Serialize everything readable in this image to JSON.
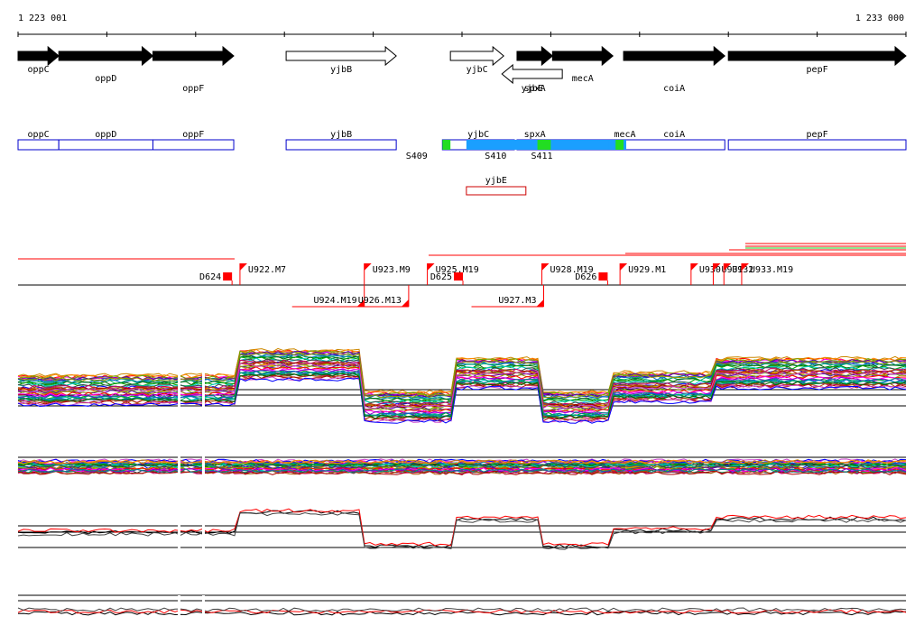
{
  "ruler": {
    "start_label": "1 223 001",
    "end_label": "1 233 000"
  },
  "genome": {
    "start": 1223001,
    "end": 1233000
  },
  "colors": {
    "gene_fill": "#000000",
    "segment_stroke": "#0000cc",
    "segment_fill_blue": "#1a9fff",
    "segment_fill_green": "#22dd22",
    "antisense_stroke": "#cc0000",
    "marker_red": "#ff0000"
  },
  "genes": [
    {
      "name": "oppC",
      "start": 1223001,
      "end": 1223460,
      "strand": "+",
      "filled": true
    },
    {
      "name": "oppD",
      "start": 1223460,
      "end": 1224520,
      "strand": "+",
      "filled": true
    },
    {
      "name": "oppF",
      "start": 1224520,
      "end": 1225430,
      "strand": "+",
      "filled": true
    },
    {
      "name": "yjbB",
      "start": 1226020,
      "end": 1227260,
      "strand": "+",
      "filled": false
    },
    {
      "name": "yjbC",
      "start": 1227870,
      "end": 1228470,
      "strand": "+",
      "filled": false
    },
    {
      "name": "spxA",
      "start": 1228620,
      "end": 1229020,
      "strand": "+",
      "filled": true
    },
    {
      "name": "yjbE",
      "start": 1228450,
      "end": 1229130,
      "strand": "-",
      "filled": false
    },
    {
      "name": "mecA",
      "start": 1229020,
      "end": 1229700,
      "strand": "+",
      "filled": true
    },
    {
      "name": "coiA",
      "start": 1229820,
      "end": 1230960,
      "strand": "+",
      "filled": true
    },
    {
      "name": "pepF",
      "start": 1231000,
      "end": 1233000,
      "strand": "+",
      "filled": true
    }
  ],
  "segments": [
    {
      "label": "oppC",
      "start": 1223001,
      "end": 1223460
    },
    {
      "label": "oppD",
      "start": 1223460,
      "end": 1224520
    },
    {
      "label": "oppF",
      "start": 1224520,
      "end": 1225430
    },
    {
      "label": "yjbB",
      "start": 1226020,
      "end": 1227260
    },
    {
      "label": "yjbC",
      "start": 1227780,
      "end": 1228590
    },
    {
      "label": "spxA",
      "start": 1228620,
      "end": 1229020
    },
    {
      "label": "mecA",
      "start": 1229020,
      "end": 1230650
    },
    {
      "label": "coiA",
      "start": 1229820,
      "end": 1230960
    },
    {
      "label": "pepF",
      "start": 1231000,
      "end": 1233000
    }
  ],
  "segment_fills": [
    {
      "start": 1227780,
      "end": 1227870,
      "color": "green"
    },
    {
      "start": 1228450,
      "end": 1228570,
      "color": "blue"
    },
    {
      "start": 1228050,
      "end": 1229850,
      "color": "blue"
    },
    {
      "start": 1228850,
      "end": 1229000,
      "color": "green"
    },
    {
      "start": 1229650,
      "end": 1229730,
      "color": "blue"
    },
    {
      "start": 1229730,
      "end": 1229820,
      "color": "green"
    }
  ],
  "segment_labels": [
    {
      "label": "S409",
      "pos": 1227490
    },
    {
      "label": "S410",
      "pos": 1228380
    },
    {
      "label": "S411",
      "pos": 1228900
    }
  ],
  "antisense": {
    "label": "yjbE",
    "start": 1228050,
    "end": 1228720
  },
  "upshifts": [
    {
      "label": "U922.M7",
      "pos": 1225500,
      "row": "top"
    },
    {
      "label": "U923.M9",
      "pos": 1226900,
      "row": "top"
    },
    {
      "label": "U925.M19",
      "pos": 1227610,
      "row": "top"
    },
    {
      "label": "U928.M19",
      "pos": 1228900,
      "row": "top"
    },
    {
      "label": "U929.M1",
      "pos": 1229780,
      "row": "top"
    },
    {
      "label": "U930",
      "pos": 1230580,
      "row": "top"
    },
    {
      "label": "U931",
      "pos": 1230830,
      "row": "top"
    },
    {
      "label": "U932",
      "pos": 1230950,
      "row": "top"
    },
    {
      "label": "U933.M19",
      "pos": 1231150,
      "row": "top"
    },
    {
      "label": "U924.M19",
      "pos": 1226900,
      "row": "bottom"
    },
    {
      "label": "U926.M13",
      "pos": 1227400,
      "row": "bottom"
    },
    {
      "label": "U927.M3",
      "pos": 1228920,
      "row": "bottom"
    }
  ],
  "downshifts": [
    {
      "label": "D624",
      "pos": 1225360
    },
    {
      "label": "D625",
      "pos": 1227960
    },
    {
      "label": "D626",
      "pos": 1229590
    }
  ],
  "expression": {
    "segments_breaks": [
      1225450,
      1226900,
      1227880,
      1228900,
      1229650,
      1230850
    ],
    "level_high": 1,
    "level_low": 0
  }
}
